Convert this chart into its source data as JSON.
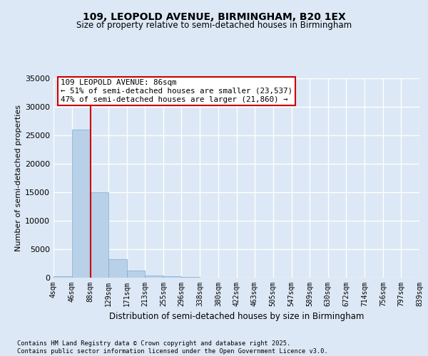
{
  "title1": "109, LEOPOLD AVENUE, BIRMINGHAM, B20 1EX",
  "title2": "Size of property relative to semi-detached houses in Birmingham",
  "xlabel": "Distribution of semi-detached houses by size in Birmingham",
  "ylabel": "Number of semi-detached properties",
  "footer1": "Contains HM Land Registry data © Crown copyright and database right 2025.",
  "footer2": "Contains public sector information licensed under the Open Government Licence v3.0.",
  "bar_edges": [
    4,
    46,
    88,
    129,
    171,
    213,
    255,
    296,
    338,
    380,
    422,
    463,
    505,
    547,
    589,
    630,
    672,
    714,
    756,
    797,
    839
  ],
  "bar_labels": [
    "4sqm",
    "46sqm",
    "88sqm",
    "129sqm",
    "171sqm",
    "213sqm",
    "255sqm",
    "296sqm",
    "338sqm",
    "380sqm",
    "422sqm",
    "463sqm",
    "505sqm",
    "547sqm",
    "589sqm",
    "630sqm",
    "672sqm",
    "714sqm",
    "756sqm",
    "797sqm",
    "839sqm"
  ],
  "bar_values": [
    300,
    26000,
    15000,
    3200,
    1200,
    400,
    200,
    100,
    40,
    20,
    10,
    5,
    3,
    2,
    1,
    1,
    1,
    0,
    0,
    0
  ],
  "bar_color": "#b8d0e8",
  "bar_edge_color": "#7aabcf",
  "vline_x": 88,
  "vline_color": "#cc0000",
  "annotation_title": "109 LEOPOLD AVENUE: 86sqm",
  "annotation_line1": "← 51% of semi-detached houses are smaller (23,537)",
  "annotation_line2": "47% of semi-detached houses are larger (21,860) →",
  "annotation_box_color": "#ffffff",
  "annotation_box_edge": "#cc0000",
  "ylim": [
    0,
    35000
  ],
  "yticks": [
    0,
    5000,
    10000,
    15000,
    20000,
    25000,
    30000,
    35000
  ],
  "bg_color": "#dce8f5",
  "plot_bg_color": "#dce8f5",
  "grid_color": "#ffffff"
}
